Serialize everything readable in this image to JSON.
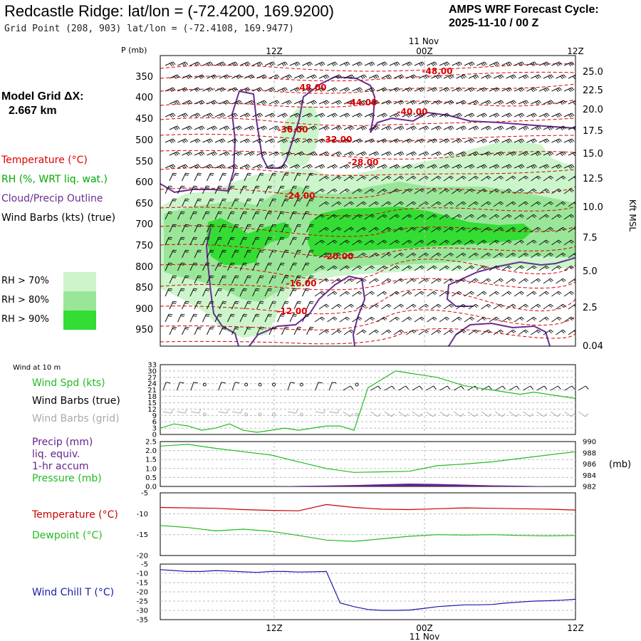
{
  "header": {
    "title": "Redcastle Ridge:  lat/lon = (-72.4200, 169.9200)",
    "subtitle": "Grid Point (208, 903) lat/lon = (-72.4108, 169.9477)",
    "cycle_line1": "AMPS WRF Forecast Cycle:",
    "cycle_line2": "2025-11-10 / 00  Z"
  },
  "legend": {
    "model_grid_label": "Model Grid ΔX:",
    "model_grid_value": "2.667 km",
    "temperature": "Temperature (°C)",
    "rh": "RH (%, WRT liq. wat.)",
    "cloud": "Cloud/Precip Outline",
    "wind_barbs": "Wind Barbs (kts) (true)",
    "rh70": "RH > 70%",
    "rh80": "RH > 80%",
    "rh90": "RH > 90%"
  },
  "colors": {
    "temperature": "#dd0000",
    "rh70": "#ccf5cc",
    "rh80": "#99e699",
    "rh90": "#33dd33",
    "cloud": "#6a2d8f",
    "rh_text": "#00aa00",
    "wind_spd": "#22bb22",
    "precip": "#66228c",
    "pressure": "#22bb22",
    "t2m": "#cc0000",
    "td2m": "#22bb22",
    "windchill": "#1a1aaa",
    "grid_barbs": "#aaaaaa"
  },
  "chart_data": [
    {
      "type": "contour",
      "name": "cross-section",
      "pressure_label": "P (mb)",
      "height_label": "Kft MSL",
      "top_date_label": "11 Nov",
      "x_tick_labels": [
        "12Z",
        "00Z",
        "12Z"
      ],
      "p_ticks": [
        "350",
        "400",
        "450",
        "500",
        "550",
        "600",
        "650",
        "700",
        "750",
        "800",
        "850",
        "900",
        "950"
      ],
      "kft_ticks": [
        "25.0",
        "22.5",
        "20.0",
        "17.5",
        "15.0",
        "12.5",
        "10.0",
        "7.5",
        "5.0",
        "2.5",
        "0.04"
      ],
      "temp_contour_labels": [
        "-48.00",
        "-48.00",
        "-44.00",
        "-40.00",
        "-36.00",
        "-32.00",
        "-28.00",
        "-24.00",
        "-20.00",
        "-16.00",
        "-12.00"
      ]
    },
    {
      "type": "line",
      "name": "wind-at-10m",
      "panel_title": "Wind at 10 m",
      "labels": {
        "speed": "Wind Spd (kts)",
        "barbs_true": "Wind Barbs (true)",
        "barbs_grid": "Wind Barbs (grid)"
      },
      "y_ticks": [
        "33",
        "30",
        "27",
        "24",
        "21",
        "18",
        "15",
        "12",
        "9",
        "6",
        "3",
        "0"
      ],
      "ylim": [
        0,
        33
      ],
      "x_hours": [
        0,
        3,
        6,
        9,
        12,
        15,
        18,
        21,
        24,
        27,
        30,
        33,
        36,
        39,
        42,
        45,
        48,
        51,
        54,
        57,
        60,
        63,
        66,
        69,
        72,
        75,
        78,
        81,
        84,
        87,
        90
      ],
      "values": [
        3,
        5,
        4,
        2,
        3,
        5,
        2,
        1,
        2,
        3,
        2,
        3,
        4,
        4,
        2,
        22,
        26,
        30,
        29,
        28,
        27,
        25,
        23,
        22,
        21,
        20,
        19,
        20,
        19,
        18,
        17
      ]
    },
    {
      "type": "line",
      "name": "precip-pressure",
      "labels": {
        "precip": "Precip (mm)",
        "liq": "liq. equiv.",
        "accum": "1-hr accum",
        "pressure": "Pressure (mb)"
      },
      "unit_label": "(mb)",
      "precip_ticks": [
        "2.5",
        "2.0",
        "1.5",
        "1.0",
        "0.5",
        "0.0"
      ],
      "pressure_ticks": [
        "990",
        "988",
        "986",
        "984",
        "982"
      ],
      "precip_ylim": [
        0,
        2.5
      ],
      "pressure_ylim": [
        982,
        990
      ],
      "x_hours": [
        0,
        6,
        12,
        18,
        24,
        30,
        36,
        42,
        48,
        54,
        60,
        66,
        72,
        78,
        84,
        90
      ],
      "pressure": [
        989.2,
        989.5,
        988.8,
        988.2,
        987.6,
        986.4,
        985.2,
        984.5,
        984.6,
        984.7,
        985.7,
        986.0,
        986.4,
        987.0,
        987.6,
        988.2
      ],
      "precip": [
        0.0,
        0.0,
        0.0,
        0.0,
        0.0,
        0.03,
        0.05,
        0.08,
        0.12,
        0.16,
        0.14,
        0.1,
        0.06,
        0.04,
        0.01,
        0.0
      ]
    },
    {
      "type": "line",
      "name": "temperature-dewpoint",
      "labels": {
        "temperature": "Temperature (°C)",
        "dewpoint": "Dewpoint (°C)"
      },
      "y_ticks": [
        "-5",
        "-10",
        "-15",
        "-20"
      ],
      "ylim": [
        -20,
        -5
      ],
      "x_hours": [
        0,
        6,
        12,
        18,
        24,
        30,
        36,
        42,
        48,
        54,
        60,
        66,
        72,
        78,
        84,
        90
      ],
      "temperature": [
        -8.5,
        -8.6,
        -8.7,
        -9.0,
        -9.2,
        -9.3,
        -7.8,
        -8.5,
        -8.9,
        -9.0,
        -8.8,
        -8.6,
        -8.7,
        -8.8,
        -8.9,
        -9.1
      ],
      "dewpoint": [
        -12.8,
        -13.3,
        -14.1,
        -13.7,
        -14.2,
        -15.2,
        -16.3,
        -16.6,
        -16.0,
        -15.4,
        -15.0,
        -15.1,
        -15.0,
        -15.2,
        -15.3,
        -15.2
      ]
    },
    {
      "type": "line",
      "name": "wind-chill",
      "labels": {
        "windchill": "Wind Chill T (°C)"
      },
      "y_ticks": [
        "-5",
        "-10",
        "-15",
        "-20",
        "-25",
        "-30",
        "-35"
      ],
      "ylim": [
        -35,
        -5
      ],
      "x_hours": [
        0,
        3,
        6,
        9,
        12,
        15,
        18,
        21,
        24,
        27,
        30,
        33,
        36,
        39,
        42,
        45,
        48,
        51,
        54,
        57,
        60,
        63,
        66,
        69,
        72,
        75,
        78,
        81,
        84,
        87,
        90
      ],
      "values": [
        -8,
        -8.5,
        -9,
        -9,
        -8.5,
        -8.8,
        -9.2,
        -9.5,
        -9,
        -9,
        -9.3,
        -9.2,
        -9,
        -26,
        -28,
        -29.5,
        -30,
        -30,
        -29.8,
        -29,
        -28,
        -27.5,
        -27,
        -27,
        -26.8,
        -26,
        -25.5,
        -25,
        -24.8,
        -24.5,
        -24
      ]
    }
  ],
  "bottom_axis": {
    "x_tick_labels": [
      "12Z",
      "00Z",
      "12Z"
    ],
    "date_label": "11 Nov"
  }
}
